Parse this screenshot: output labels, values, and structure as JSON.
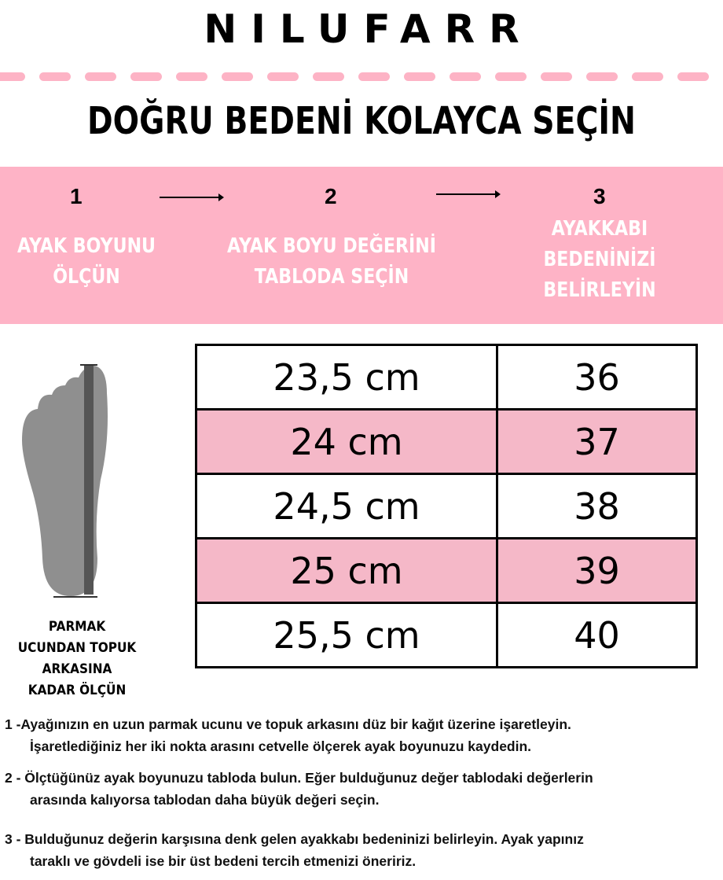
{
  "brand": "NILUFARR",
  "headline": "DOĞRU BEDENİ KOLAYCA SEÇİN",
  "colors": {
    "pink_band": "#feb3c6",
    "table_pink": "#f5b8c8",
    "dash": "#fdb3c5",
    "foot": "#8f8f8f"
  },
  "steps": [
    {
      "number": "1",
      "lines": [
        "AYAK BOYUNU",
        "ÖLÇÜN"
      ]
    },
    {
      "number": "2",
      "lines": [
        "AYAK BOYU DEĞERİNİ",
        "TABLODA SEÇİN"
      ]
    },
    {
      "number": "3",
      "lines": [
        "AYAKKABI",
        "BEDENİNİZİ",
        "BELİRLEYİN"
      ]
    }
  ],
  "foot_caption": [
    "PARMAK",
    "UCUNDAN TOPUK",
    "ARKASINA",
    "KADAR ÖLÇÜN"
  ],
  "size_table": {
    "rows": [
      {
        "length": "23,5 cm",
        "size": "36"
      },
      {
        "length": "24 cm",
        "size": "37"
      },
      {
        "length": "24,5 cm",
        "size": "38"
      },
      {
        "length": "25 cm",
        "size": "39"
      },
      {
        "length": "25,5 cm",
        "size": "40"
      }
    ]
  },
  "notes": [
    {
      "line1": "1 -Ayağınızın en uzun parmak ucunu ve topuk arkasını düz bir kağıt üzerine işaretleyin.",
      "line2": "İşaretlediğiniz her iki nokta arasını cetvelle ölçerek ayak boyunuzu kaydedin."
    },
    {
      "line1": "2 - Ölçtüğünüz ayak boyunuzu tabloda bulun. Eğer bulduğunuz değer tablodaki değerlerin",
      "line2": "arasında kalıyorsa tablodan daha büyük değeri seçin."
    },
    {
      "line1": "3 - Bulduğunuz değerin karşısına denk gelen ayakkabı bedeninizi belirleyin. Ayak yapınız",
      "line2": "taraklı ve gövdeli ise bir üst bedeni tercih etmenizi öneririz."
    }
  ]
}
